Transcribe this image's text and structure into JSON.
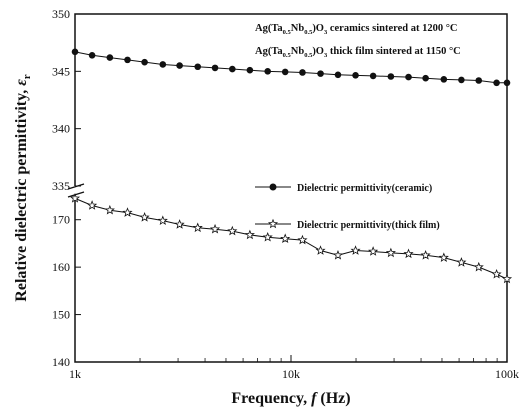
{
  "chart_data": {
    "type": "line",
    "xlabel": "Frequency, ",
    "xlabel_symbol": "f",
    "xlabel_unit": " (Hz)",
    "ylabel": "Relative dielectric permittivity, ",
    "ylabel_symbol": "ε",
    "ylabel_sub": "r",
    "x_scale": "log",
    "xlim": [
      1000,
      100000
    ],
    "x_ticks": [
      {
        "value": 1000,
        "label": "1k"
      },
      {
        "value": 10000,
        "label": "10k"
      },
      {
        "value": 100000,
        "label": "100k"
      }
    ],
    "y_axis_break": true,
    "upper_panel": {
      "ylim": [
        335,
        350
      ],
      "ticks": [
        {
          "value": 335,
          "label": "335"
        },
        {
          "value": 340,
          "label": "340"
        },
        {
          "value": 345,
          "label": "345"
        },
        {
          "value": 350,
          "label": "350"
        }
      ]
    },
    "lower_panel": {
      "ylim": [
        140,
        175
      ],
      "ticks": [
        {
          "value": 140,
          "label": "140"
        },
        {
          "value": 150,
          "label": "150"
        },
        {
          "value": 160,
          "label": "160"
        },
        {
          "value": 170,
          "label": "170"
        }
      ]
    },
    "annotations": [
      {
        "pre": "Ag(Ta",
        "s1": "0.5",
        "mid": "Nb",
        "s2": "0.5",
        "post": ")O",
        "s3": "3",
        "tail": " ceramics sintered at 1200 °C"
      },
      {
        "pre": "Ag(Ta",
        "s1": "0.5",
        "mid": "Nb",
        "s2": "0.5",
        "post": ")O",
        "s3": "3",
        "tail": " thick film sintered at 1150 °C"
      }
    ],
    "series": [
      {
        "name": "Dielectric permittivity(ceramic)",
        "panel": "upper",
        "marker": "circle",
        "x": [
          1000,
          1200,
          1450,
          1750,
          2100,
          2550,
          3050,
          3700,
          4450,
          5350,
          6450,
          7800,
          9400,
          11300,
          13700,
          16500,
          19900,
          24000,
          29000,
          35000,
          42000,
          51000,
          61500,
          74000,
          89500,
          100000
        ],
        "y": [
          346.7,
          346.4,
          346.2,
          346.0,
          345.8,
          345.6,
          345.5,
          345.4,
          345.3,
          345.2,
          345.1,
          345.0,
          344.95,
          344.9,
          344.8,
          344.7,
          344.65,
          344.6,
          344.55,
          344.5,
          344.4,
          344.3,
          344.25,
          344.2,
          344.0,
          344.0
        ]
      },
      {
        "name": "Dielectric permittivity(thick film)",
        "panel": "lower",
        "marker": "star",
        "x": [
          1000,
          1200,
          1450,
          1750,
          2100,
          2550,
          3050,
          3700,
          4450,
          5350,
          6450,
          7800,
          9400,
          11300,
          13700,
          16500,
          19900,
          24000,
          29000,
          35000,
          42000,
          51000,
          61500,
          74000,
          89500,
          100000
        ],
        "y": [
          174.5,
          173.0,
          172.0,
          171.5,
          170.5,
          169.8,
          169.0,
          168.3,
          168.0,
          167.6,
          166.8,
          166.3,
          166.0,
          165.7,
          163.5,
          162.5,
          163.5,
          163.3,
          163.0,
          162.8,
          162.5,
          162.0,
          161.0,
          160.0,
          158.5,
          157.5
        ]
      }
    ],
    "legend_position": "right, lower half",
    "grid": false
  }
}
